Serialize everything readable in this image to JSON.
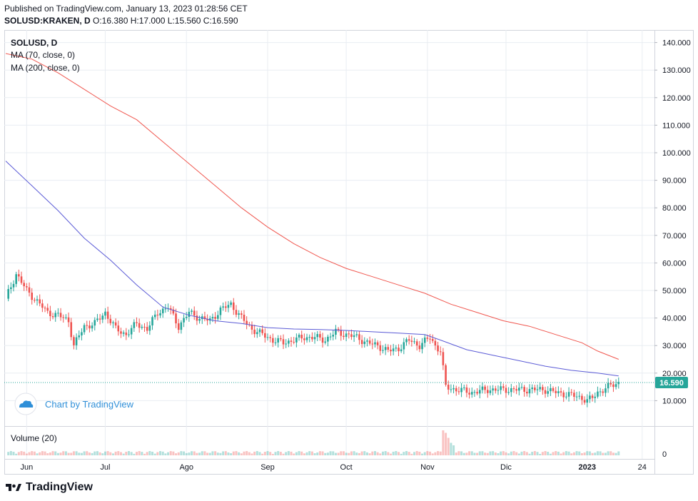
{
  "header": {
    "published": "Published on TradingView.com, January 13, 2023 01:28:56 CET",
    "symbol_line": "SOLUSD:KRAKEN, D",
    "ohlc": "O:16.380 H:17.000 L:15.560 C:16.590"
  },
  "legend": {
    "symbol": "SOLUSD, D",
    "ma70": "MA (70, close, 0)",
    "ma200": "MA (200, close, 0)",
    "volume": "Volume (20)"
  },
  "watermark": "Chart by TradingView",
  "footer_brand": "TradingView",
  "price_label": "16.590",
  "colors": {
    "up": "#26a69a",
    "down": "#ef5350",
    "ma70": "#5b5bd6",
    "ma200": "#f0574f",
    "price_line": "#26a69a",
    "grid": "#e9edf2",
    "watermark": "#2f8fd8"
  },
  "chart_data": {
    "type": "candlestick",
    "ylim": [
      0,
      145
    ],
    "y_ticks": [
      "140.000",
      "130.000",
      "120.000",
      "110.000",
      "100.000",
      "90.000",
      "80.000",
      "70.000",
      "60.000",
      "50.000",
      "40.000",
      "30.000",
      "20.000",
      "10.000"
    ],
    "y_tick_values": [
      140,
      130,
      120,
      110,
      100,
      90,
      80,
      70,
      60,
      50,
      40,
      30,
      20,
      10
    ],
    "x_ticks": [
      "Jun",
      "Jul",
      "Ago",
      "Sep",
      "Oct",
      "Nov",
      "Dic",
      "2023",
      "24"
    ],
    "x_tick_days": [
      8,
      38,
      69,
      100,
      130,
      161,
      191,
      222,
      243
    ],
    "volume_axis_label": "0",
    "close_path": [
      [
        0,
        47
      ],
      [
        4,
        56
      ],
      [
        8,
        50
      ],
      [
        12,
        46
      ],
      [
        16,
        42
      ],
      [
        20,
        41
      ],
      [
        24,
        39
      ],
      [
        26,
        30
      ],
      [
        30,
        37
      ],
      [
        34,
        38
      ],
      [
        38,
        42
      ],
      [
        42,
        36
      ],
      [
        46,
        34
      ],
      [
        50,
        38
      ],
      [
        54,
        36
      ],
      [
        58,
        42
      ],
      [
        62,
        44
      ],
      [
        66,
        37
      ],
      [
        70,
        42
      ],
      [
        74,
        40
      ],
      [
        78,
        39
      ],
      [
        82,
        43
      ],
      [
        86,
        45
      ],
      [
        90,
        40
      ],
      [
        94,
        36
      ],
      [
        98,
        34
      ],
      [
        102,
        32
      ],
      [
        106,
        31
      ],
      [
        110,
        32
      ],
      [
        114,
        33
      ],
      [
        118,
        33
      ],
      [
        122,
        32
      ],
      [
        126,
        35
      ],
      [
        130,
        34
      ],
      [
        134,
        33
      ],
      [
        138,
        31
      ],
      [
        142,
        30
      ],
      [
        146,
        28
      ],
      [
        150,
        29
      ],
      [
        154,
        32
      ],
      [
        158,
        30
      ],
      [
        162,
        33
      ],
      [
        164,
        30
      ],
      [
        166,
        28
      ],
      [
        168,
        15
      ],
      [
        172,
        14
      ],
      [
        178,
        13
      ],
      [
        184,
        14
      ],
      [
        190,
        14
      ],
      [
        196,
        14
      ],
      [
        202,
        14
      ],
      [
        206,
        14
      ],
      [
        210,
        13
      ],
      [
        216,
        12
      ],
      [
        220,
        11
      ],
      [
        222,
        10
      ],
      [
        224,
        11
      ],
      [
        226,
        13
      ],
      [
        230,
        15
      ],
      [
        234,
        16.6
      ]
    ],
    "ma70": [
      [
        0,
        97
      ],
      [
        10,
        88
      ],
      [
        20,
        79
      ],
      [
        30,
        69
      ],
      [
        40,
        61
      ],
      [
        50,
        52
      ],
      [
        60,
        44
      ],
      [
        70,
        41
      ],
      [
        80,
        39
      ],
      [
        90,
        38
      ],
      [
        100,
        36.5
      ],
      [
        110,
        36
      ],
      [
        120,
        35.8
      ],
      [
        130,
        35.5
      ],
      [
        140,
        35
      ],
      [
        150,
        34.5
      ],
      [
        160,
        34
      ],
      [
        166,
        32
      ],
      [
        176,
        28.5
      ],
      [
        186,
        26.5
      ],
      [
        196,
        24.5
      ],
      [
        206,
        22.5
      ],
      [
        216,
        21
      ],
      [
        226,
        20
      ],
      [
        234,
        19
      ]
    ],
    "ma200": [
      [
        0,
        136
      ],
      [
        10,
        134
      ],
      [
        20,
        129
      ],
      [
        30,
        123
      ],
      [
        40,
        117
      ],
      [
        50,
        112
      ],
      [
        60,
        104
      ],
      [
        70,
        96
      ],
      [
        80,
        88
      ],
      [
        90,
        80
      ],
      [
        100,
        73
      ],
      [
        110,
        67
      ],
      [
        120,
        62
      ],
      [
        130,
        58
      ],
      [
        140,
        55
      ],
      [
        150,
        52
      ],
      [
        160,
        49
      ],
      [
        170,
        45
      ],
      [
        180,
        42
      ],
      [
        190,
        39
      ],
      [
        200,
        37
      ],
      [
        210,
        34
      ],
      [
        220,
        31
      ],
      [
        226,
        28
      ],
      [
        234,
        25
      ]
    ],
    "volume_spikes": [
      [
        167,
        10
      ],
      [
        168,
        9
      ],
      [
        169,
        7
      ],
      [
        170,
        5
      ],
      [
        171,
        4
      ]
    ]
  }
}
